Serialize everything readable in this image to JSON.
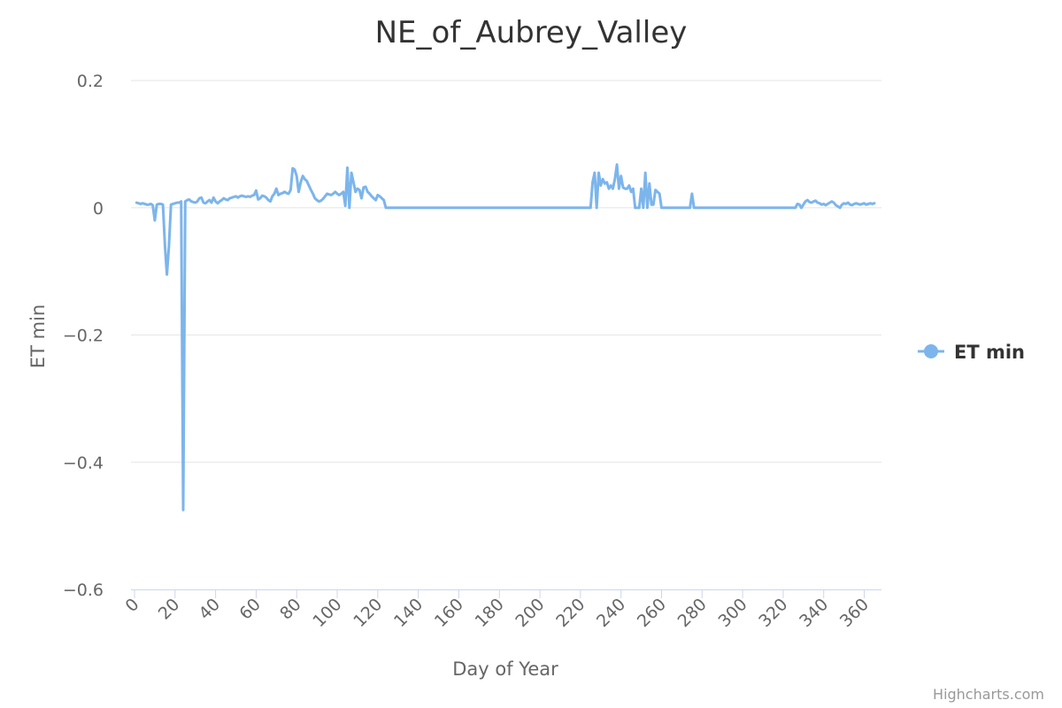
{
  "chart_data": {
    "type": "line",
    "title": "NE_of_Aubrey_Valley",
    "xlabel": "Day of Year",
    "ylabel": "ET min",
    "xlim": [
      0,
      365
    ],
    "ylim": [
      -0.6,
      0.2
    ],
    "x_ticks": [
      "0",
      "20",
      "40",
      "60",
      "80",
      "100",
      "120",
      "140",
      "160",
      "180",
      "200",
      "220",
      "240",
      "260",
      "280",
      "300",
      "320",
      "340",
      "360"
    ],
    "y_ticks": [
      "0.2",
      "0",
      "−0.2",
      "−0.4",
      "−0.6"
    ],
    "grid": "horizontal",
    "legend_position": "right",
    "color": "#7cb5ec",
    "series": [
      {
        "name": "ET min",
        "points": [
          [
            1,
            0.008
          ],
          [
            2,
            0.007
          ],
          [
            3,
            0.006
          ],
          [
            4,
            0.007
          ],
          [
            5,
            0.006
          ],
          [
            6,
            0.005
          ],
          [
            7,
            0.005
          ],
          [
            8,
            0.006
          ],
          [
            9,
            0.004
          ],
          [
            10,
            -0.02
          ],
          [
            11,
            0.005
          ],
          [
            12,
            0.006
          ],
          [
            13,
            0.006
          ],
          [
            14,
            0.005
          ],
          [
            15,
            -0.06
          ],
          [
            16,
            -0.105
          ],
          [
            17,
            -0.06
          ],
          [
            18,
            0.005
          ],
          [
            19,
            0.006
          ],
          [
            20,
            0.007
          ],
          [
            21,
            0.008
          ],
          [
            22,
            0.008
          ],
          [
            23,
            0.01
          ],
          [
            24,
            -0.475
          ],
          [
            25,
            0.01
          ],
          [
            26,
            0.012
          ],
          [
            27,
            0.013
          ],
          [
            28,
            0.01
          ],
          [
            29,
            0.009
          ],
          [
            30,
            0.008
          ],
          [
            31,
            0.01
          ],
          [
            32,
            0.015
          ],
          [
            33,
            0.016
          ],
          [
            34,
            0.008
          ],
          [
            35,
            0.007
          ],
          [
            36,
            0.01
          ],
          [
            37,
            0.012
          ],
          [
            38,
            0.008
          ],
          [
            39,
            0.016
          ],
          [
            40,
            0.01
          ],
          [
            41,
            0.007
          ],
          [
            42,
            0.01
          ],
          [
            43,
            0.012
          ],
          [
            44,
            0.015
          ],
          [
            45,
            0.013
          ],
          [
            46,
            0.012
          ],
          [
            47,
            0.015
          ],
          [
            48,
            0.016
          ],
          [
            49,
            0.017
          ],
          [
            50,
            0.018
          ],
          [
            51,
            0.016
          ],
          [
            52,
            0.018
          ],
          [
            53,
            0.019
          ],
          [
            54,
            0.018
          ],
          [
            55,
            0.017
          ],
          [
            56,
            0.018
          ],
          [
            57,
            0.017
          ],
          [
            58,
            0.019
          ],
          [
            59,
            0.02
          ],
          [
            60,
            0.027
          ],
          [
            61,
            0.013
          ],
          [
            62,
            0.015
          ],
          [
            63,
            0.019
          ],
          [
            64,
            0.018
          ],
          [
            65,
            0.016
          ],
          [
            66,
            0.012
          ],
          [
            67,
            0.01
          ],
          [
            68,
            0.018
          ],
          [
            69,
            0.022
          ],
          [
            70,
            0.03
          ],
          [
            71,
            0.02
          ],
          [
            72,
            0.022
          ],
          [
            73,
            0.023
          ],
          [
            74,
            0.025
          ],
          [
            75,
            0.023
          ],
          [
            76,
            0.022
          ],
          [
            77,
            0.028
          ],
          [
            78,
            0.062
          ],
          [
            79,
            0.06
          ],
          [
            80,
            0.05
          ],
          [
            81,
            0.025
          ],
          [
            82,
            0.04
          ],
          [
            83,
            0.05
          ],
          [
            84,
            0.045
          ],
          [
            85,
            0.042
          ],
          [
            86,
            0.035
          ],
          [
            87,
            0.028
          ],
          [
            88,
            0.022
          ],
          [
            89,
            0.015
          ],
          [
            90,
            0.012
          ],
          [
            91,
            0.01
          ],
          [
            92,
            0.011
          ],
          [
            93,
            0.014
          ],
          [
            94,
            0.018
          ],
          [
            95,
            0.022
          ],
          [
            96,
            0.021
          ],
          [
            97,
            0.02
          ],
          [
            98,
            0.022
          ],
          [
            99,
            0.025
          ],
          [
            100,
            0.022
          ],
          [
            101,
            0.02
          ],
          [
            102,
            0.022
          ],
          [
            103,
            0.025
          ],
          [
            104,
            0.003
          ],
          [
            105,
            0.063
          ],
          [
            106,
            0.0
          ],
          [
            107,
            0.055
          ],
          [
            108,
            0.04
          ],
          [
            109,
            0.025
          ],
          [
            110,
            0.03
          ],
          [
            111,
            0.028
          ],
          [
            112,
            0.015
          ],
          [
            113,
            0.032
          ],
          [
            114,
            0.033
          ],
          [
            115,
            0.025
          ],
          [
            116,
            0.022
          ],
          [
            117,
            0.018
          ],
          [
            118,
            0.015
          ],
          [
            119,
            0.012
          ],
          [
            120,
            0.02
          ],
          [
            121,
            0.018
          ],
          [
            122,
            0.015
          ],
          [
            123,
            0.012
          ],
          [
            124,
            0.0
          ],
          [
            130,
            0.0
          ],
          [
            140,
            0.0
          ],
          [
            150,
            0.0
          ],
          [
            160,
            0.0
          ],
          [
            170,
            0.0
          ],
          [
            180,
            0.0
          ],
          [
            190,
            0.0
          ],
          [
            200,
            0.0
          ],
          [
            210,
            0.0
          ],
          [
            220,
            0.0
          ],
          [
            225,
            0.0
          ],
          [
            226,
            0.04
          ],
          [
            227,
            0.055
          ],
          [
            228,
            0.0
          ],
          [
            229,
            0.055
          ],
          [
            230,
            0.035
          ],
          [
            231,
            0.045
          ],
          [
            232,
            0.038
          ],
          [
            233,
            0.04
          ],
          [
            234,
            0.03
          ],
          [
            235,
            0.035
          ],
          [
            236,
            0.03
          ],
          [
            237,
            0.045
          ],
          [
            238,
            0.068
          ],
          [
            239,
            0.03
          ],
          [
            240,
            0.05
          ],
          [
            241,
            0.032
          ],
          [
            242,
            0.03
          ],
          [
            243,
            0.03
          ],
          [
            244,
            0.035
          ],
          [
            245,
            0.025
          ],
          [
            246,
            0.03
          ],
          [
            247,
            0.0
          ],
          [
            248,
            0.0
          ],
          [
            249,
            0.0
          ],
          [
            250,
            0.03
          ],
          [
            251,
            0.0
          ],
          [
            252,
            0.055
          ],
          [
            253,
            0.0
          ],
          [
            254,
            0.038
          ],
          [
            255,
            0.005
          ],
          [
            256,
            0.005
          ],
          [
            257,
            0.028
          ],
          [
            258,
            0.025
          ],
          [
            259,
            0.022
          ],
          [
            260,
            0.0
          ],
          [
            265,
            0.0
          ],
          [
            270,
            0.0
          ],
          [
            274,
            0.0
          ],
          [
            275,
            0.022
          ],
          [
            276,
            0.0
          ],
          [
            280,
            0.0
          ],
          [
            290,
            0.0
          ],
          [
            300,
            0.0
          ],
          [
            310,
            0.0
          ],
          [
            320,
            0.0
          ],
          [
            326,
            0.0
          ],
          [
            327,
            0.006
          ],
          [
            328,
            0.005
          ],
          [
            329,
            0.0
          ],
          [
            330,
            0.005
          ],
          [
            331,
            0.01
          ],
          [
            332,
            0.012
          ],
          [
            333,
            0.009
          ],
          [
            334,
            0.008
          ],
          [
            335,
            0.01
          ],
          [
            336,
            0.011
          ],
          [
            337,
            0.008
          ],
          [
            338,
            0.007
          ],
          [
            339,
            0.005
          ],
          [
            340,
            0.006
          ],
          [
            341,
            0.004
          ],
          [
            342,
            0.006
          ],
          [
            343,
            0.008
          ],
          [
            344,
            0.01
          ],
          [
            345,
            0.008
          ],
          [
            346,
            0.004
          ],
          [
            347,
            0.002
          ],
          [
            348,
            0.0
          ],
          [
            349,
            0.005
          ],
          [
            350,
            0.007
          ],
          [
            351,
            0.006
          ],
          [
            352,
            0.008
          ],
          [
            353,
            0.005
          ],
          [
            354,
            0.004
          ],
          [
            355,
            0.006
          ],
          [
            356,
            0.007
          ],
          [
            357,
            0.006
          ],
          [
            358,
            0.005
          ],
          [
            359,
            0.006
          ],
          [
            360,
            0.007
          ],
          [
            361,
            0.005
          ],
          [
            362,
            0.006
          ],
          [
            363,
            0.007
          ],
          [
            364,
            0.006
          ],
          [
            365,
            0.007
          ]
        ]
      }
    ]
  },
  "credits": "Highcharts.com"
}
